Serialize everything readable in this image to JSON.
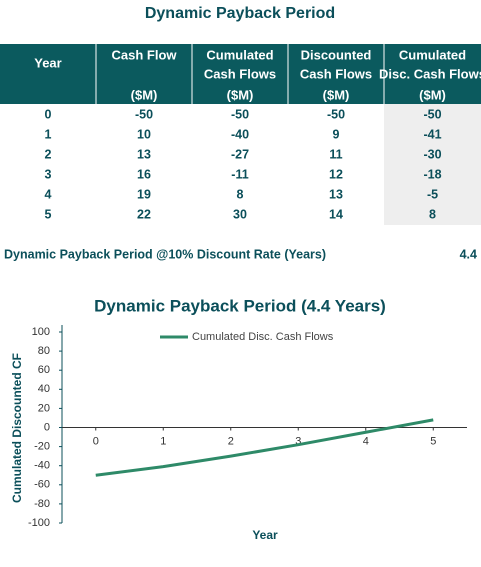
{
  "title": "Dynamic Payback Period",
  "table": {
    "headers": [
      {
        "lines": [
          "Year"
        ]
      },
      {
        "lines": [
          "Cash Flow"
        ],
        "unit": "($M)"
      },
      {
        "lines": [
          "Cumulated",
          "Cash Flows"
        ],
        "unit": "($M)"
      },
      {
        "lines": [
          "Discounted",
          "Cash Flows"
        ],
        "unit": "($M)"
      },
      {
        "lines": [
          "Cumulated",
          "Disc. Cash Flows"
        ],
        "unit": "($M)"
      }
    ],
    "rows": [
      [
        0,
        -50,
        -50,
        -50,
        -50
      ],
      [
        1,
        10,
        -40,
        9,
        -41
      ],
      [
        2,
        13,
        -27,
        11,
        -30
      ],
      [
        3,
        16,
        -11,
        12,
        -18
      ],
      [
        4,
        19,
        8,
        13,
        -5
      ],
      [
        5,
        22,
        30,
        14,
        8
      ]
    ]
  },
  "summary": {
    "label": "Dynamic Payback Period @10% Discount Rate (Years)",
    "value": 4.4
  },
  "chart_data": {
    "type": "line",
    "title": "Dynamic Payback Period (4.4 Years)",
    "x_label": "Year",
    "y_label": "Cumulated Discounted CF",
    "x": [
      0,
      1,
      2,
      3,
      4,
      5
    ],
    "xlim": [
      -0.5,
      5.5
    ],
    "xticks": [
      0,
      1,
      2,
      3,
      4,
      5
    ],
    "ylim": [
      -100,
      100
    ],
    "yticks": [
      -100,
      -80,
      -60,
      -40,
      -20,
      0,
      20,
      40,
      60,
      80,
      100
    ],
    "series": [
      {
        "name": "Cumulated Disc. Cash Flows",
        "color": "#2e8a68",
        "values": [
          -50,
          -41,
          -30,
          -18,
          -5,
          8
        ]
      }
    ],
    "legend": "top",
    "grid": false
  }
}
